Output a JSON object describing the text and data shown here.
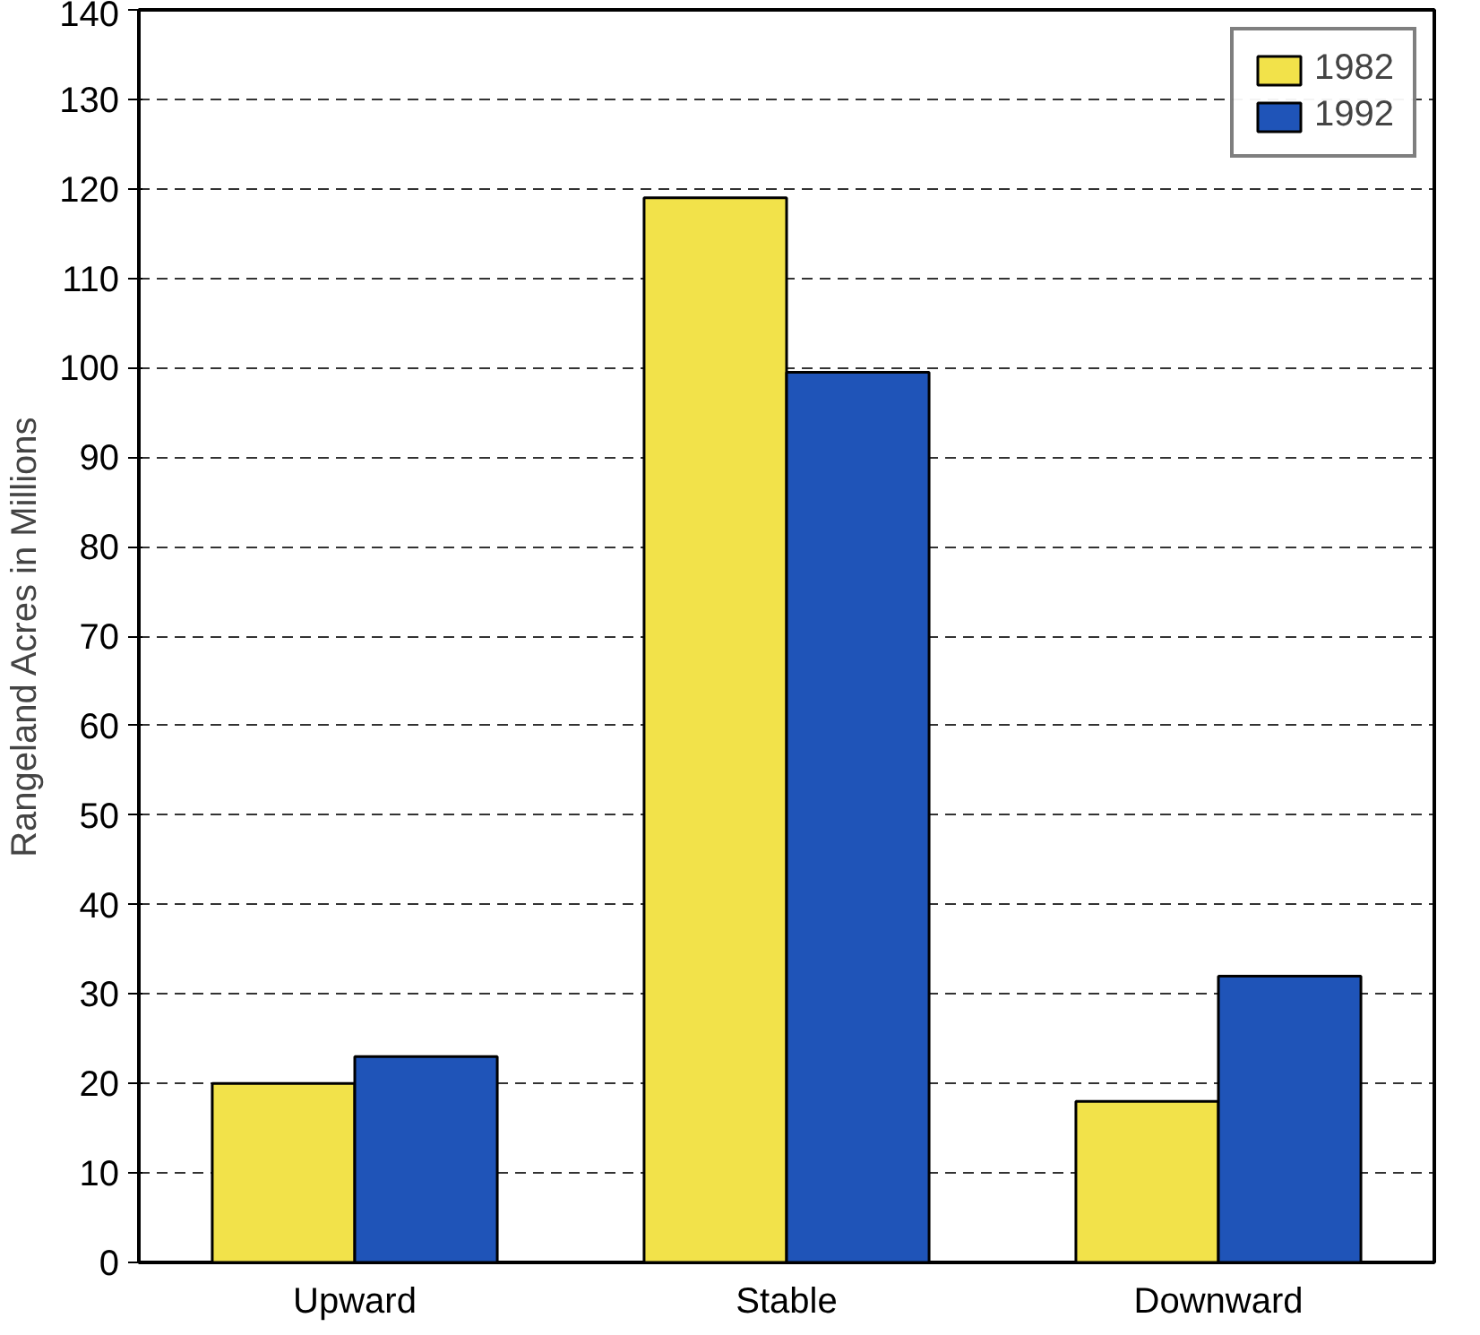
{
  "chart_data": {
    "type": "bar",
    "ylabel": "Rangeland Acres in Millions",
    "categories": [
      "Upward",
      "Stable",
      "Downward"
    ],
    "series": [
      {
        "name": "1982",
        "color": "#f2e24a",
        "values": [
          20,
          119,
          18
        ]
      },
      {
        "name": "1992",
        "color": "#1f54b8",
        "values": [
          23,
          99.5,
          32
        ]
      }
    ],
    "ylim": [
      0,
      140
    ],
    "yticks": [
      0,
      10,
      20,
      30,
      40,
      50,
      60,
      70,
      80,
      90,
      100,
      110,
      120,
      130,
      140
    ],
    "grid": "y",
    "legend": "top right"
  }
}
